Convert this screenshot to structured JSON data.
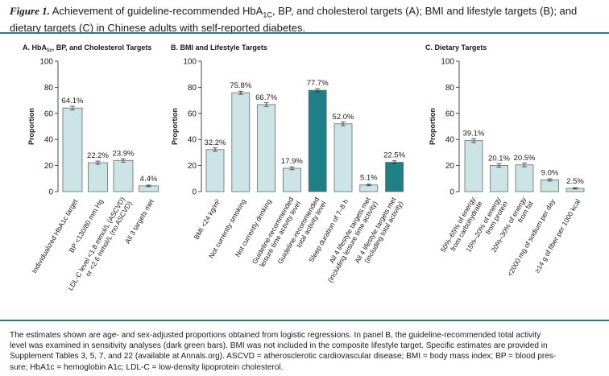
{
  "figure": {
    "title_label": "Figure 1.",
    "title_parts": [
      "Achievement of guideline-recommended HbA",
      "1C",
      ", BP, and cholesterol targets (A); BMI and lifestyle targets (B); and dietary targets (C) in Chinese adults with self-reported diabetes."
    ],
    "footnote_lines": [
      "The estimates shown are age- and sex-adjusted proportions obtained from logistic regressions. In panel B, the guideline-recommended total activity",
      "level was examined in sensitivity analyses (dark green bars). BMI was not included in the composite lifestyle target. Specific estimates are provided in",
      "Supplement Tables 3, 5, 7, and 22 (available at Annals.org). ASCVD = atherosclerotic cardiovascular disease; BMI = body mass index; BP = blood pres-",
      "sure; HbA1c = hemoglobin A1c; LDL-C = low-density lipoprotein cholesterol."
    ]
  },
  "colors": {
    "bar_light": "#cde4e6",
    "bar_dark": "#1f8088",
    "bar_stroke": "#5f6d6e",
    "rule": "#2a7c84"
  },
  "chart_data": [
    {
      "type": "bar",
      "title": "A. HbA1c, BP, and Cholesterol Targets",
      "ylabel": "Proportion",
      "ylim": [
        0,
        100
      ],
      "yticks": [
        0,
        20,
        40,
        60,
        80,
        100
      ],
      "grid": false,
      "categories": [
        [
          "Individualized HbA1c target"
        ],
        [
          "BP <130/80 mm Hg"
        ],
        [
          "LDL-C level <1.8 mmol/L (ASCVD)",
          "or <2.6 mmol/L (no ASCVD)"
        ],
        [
          "All 3 targets met"
        ]
      ],
      "values": [
        64.1,
        22.2,
        23.9,
        4.4
      ],
      "value_labels": [
        "64.1%",
        "22.2%",
        "23.9%",
        "4.4%"
      ],
      "errors": [
        1.4,
        1.2,
        1.3,
        0.6
      ],
      "sensitivity": [
        false,
        false,
        false,
        false
      ]
    },
    {
      "type": "bar",
      "title": "B. BMI and Lifestyle Targets",
      "ylabel": "Proportion",
      "ylim": [
        0,
        100
      ],
      "yticks": [
        0,
        20,
        40,
        60,
        80,
        100
      ],
      "grid": false,
      "categories": [
        [
          "BMI <24 kg/m²"
        ],
        [
          "Not currently smoking"
        ],
        [
          "Not currently drinking"
        ],
        [
          "Guideline-recommended",
          "leisure time activity level"
        ],
        [
          "Guideline-recommended",
          "total activity level"
        ],
        [
          "Sleep duration of 7–8 h"
        ],
        [
          "All 4 lifestyle targets met",
          "(including leisure time activity)"
        ],
        [
          "All 4 lifestyle targets met",
          "(including total activity)"
        ]
      ],
      "values": [
        32.2,
        75.8,
        66.7,
        17.9,
        77.7,
        52.0,
        5.1,
        22.5
      ],
      "value_labels": [
        "32.2%",
        "75.8%",
        "66.7%",
        "17.9%",
        "77.7%",
        "52.0%",
        "5.1%",
        "22.5%"
      ],
      "errors": [
        1.3,
        1.2,
        1.4,
        1.1,
        1.2,
        1.4,
        0.6,
        1.1
      ],
      "sensitivity": [
        false,
        false,
        false,
        false,
        true,
        false,
        false,
        true
      ]
    },
    {
      "type": "bar",
      "title": "C. Dietary Targets",
      "ylabel": "Proportion",
      "ylim": [
        0,
        100
      ],
      "yticks": [
        0,
        20,
        40,
        60,
        80,
        100
      ],
      "grid": false,
      "categories": [
        [
          "50%–65% of energy",
          "from carbohydrate"
        ],
        [
          "15%–20% of energy",
          "from protein"
        ],
        [
          "20%–30% of energy",
          "from fat"
        ],
        [
          "<2000 mg of sodium per day"
        ],
        [
          "≥14 g of fiber per 1000 kcal"
        ]
      ],
      "values": [
        39.1,
        20.1,
        20.5,
        9.0,
        2.5
      ],
      "value_labels": [
        "39.1%",
        "20.1%",
        "20.5%",
        "9.0%",
        "2.5%"
      ],
      "errors": [
        1.5,
        1.4,
        1.4,
        0.9,
        0.5
      ],
      "sensitivity": [
        false,
        false,
        false,
        false,
        false
      ]
    }
  ]
}
